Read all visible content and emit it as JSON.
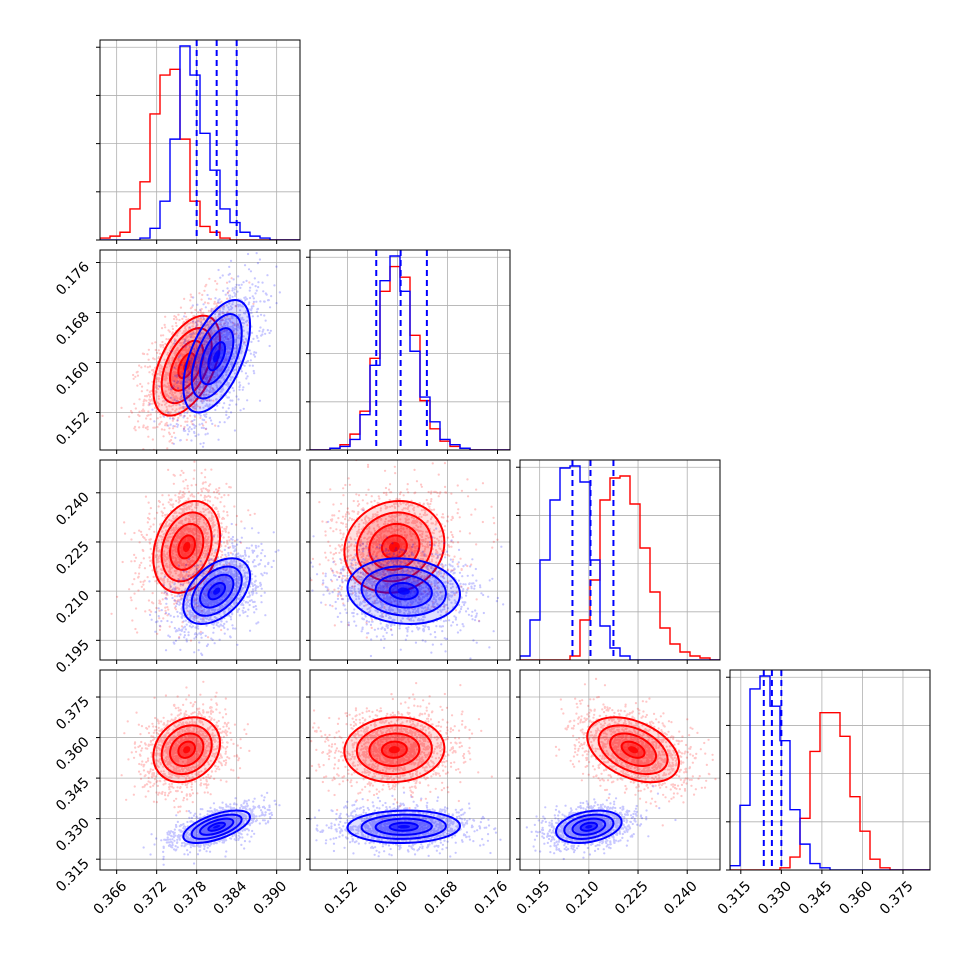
{
  "chart_data": {
    "type": "corner",
    "parameters": [
      {
        "ticks": [
          "0.366",
          "0.372",
          "0.378",
          "0.384",
          "0.390"
        ],
        "range": [
          0.3635,
          0.3935
        ]
      },
      {
        "ticks": [
          "0.152",
          "0.160",
          "0.168",
          "0.176"
        ],
        "range": [
          0.146,
          0.178
        ]
      },
      {
        "ticks": [
          "0.195",
          "0.210",
          "0.225",
          "0.240"
        ],
        "range": [
          0.189,
          0.25
        ]
      },
      {
        "ticks": [
          "0.315",
          "0.330",
          "0.345",
          "0.360",
          "0.375"
        ],
        "range": [
          0.311,
          0.385
        ]
      }
    ],
    "series": [
      {
        "color": "#ff0000",
        "means": [
          0.3765,
          0.1595,
          0.2235,
          0.3555
        ],
        "stds": [
          0.0025,
          0.004,
          0.007,
          0.006
        ],
        "corr": {
          "1-0": 0.5,
          "2-0": 0.25,
          "2-1": 0.1,
          "3-0": 0.2,
          "3-1": 0.05,
          "3-2": -0.4
        },
        "contour_scales": [
          0.5,
          1.0,
          1.5,
          2.0
        ]
      },
      {
        "color": "#0000ff",
        "means": [
          0.381,
          0.161,
          0.21,
          0.327
        ],
        "stds": [
          0.0025,
          0.0045,
          0.005,
          0.003
        ],
        "corr": {
          "1-0": 0.55,
          "2-0": 0.45,
          "2-1": -0.1,
          "3-0": 0.6,
          "3-1": 0.05,
          "3-2": 0.3
        },
        "contour_scales": [
          0.5,
          1.0,
          1.5,
          2.0
        ]
      }
    ],
    "quantile_lines_color": "#0000ff",
    "quantiles": [
      [
        0.378,
        0.381,
        0.384
      ],
      [
        0.1566,
        0.1605,
        0.1647
      ],
      [
        0.205,
        0.2105,
        0.2175
      ],
      [
        0.3235,
        0.3265,
        0.33
      ]
    ],
    "histograms": [
      {
        "red": [
          1,
          2,
          4,
          16,
          30,
          65,
          85,
          88,
          52,
          20,
          7,
          4,
          1,
          0,
          0,
          0,
          0,
          0,
          0,
          0
        ],
        "blue": [
          0,
          0,
          0,
          0,
          1,
          6,
          20,
          52,
          100,
          85,
          55,
          36,
          16,
          9,
          4,
          2,
          1,
          0,
          0,
          0
        ]
      },
      {
        "red": [
          0,
          0,
          1,
          3,
          9,
          22,
          52,
          90,
          104,
          98,
          65,
          28,
          12,
          5,
          2,
          1,
          0,
          0,
          0,
          0
        ],
        "blue": [
          0,
          0,
          1,
          2,
          6,
          20,
          48,
          96,
          110,
          90,
          56,
          30,
          16,
          6,
          3,
          1,
          0,
          0,
          0,
          0
        ]
      },
      {
        "red": [
          0,
          0,
          0,
          0,
          0,
          2,
          20,
          40,
          80,
          91,
          92,
          78,
          56,
          34,
          16,
          8,
          4,
          2,
          1,
          0
        ],
        "blue": [
          2,
          20,
          50,
          80,
          96,
          97,
          89,
          50,
          17,
          6,
          2,
          0,
          0,
          0,
          0,
          0,
          0,
          0,
          0,
          0
        ]
      },
      {
        "red": [
          0,
          0,
          0,
          0,
          0,
          1,
          6,
          24,
          55,
          73,
          73,
          62,
          34,
          18,
          5,
          1,
          0,
          0,
          0,
          0
        ],
        "blue": [
          2,
          30,
          84,
          90,
          76,
          60,
          28,
          12,
          3,
          1,
          0,
          0,
          0,
          0,
          0,
          0,
          0,
          0,
          0,
          0
        ]
      }
    ],
    "grid": true,
    "xlabel": "",
    "ylabel": "",
    "title": ""
  }
}
